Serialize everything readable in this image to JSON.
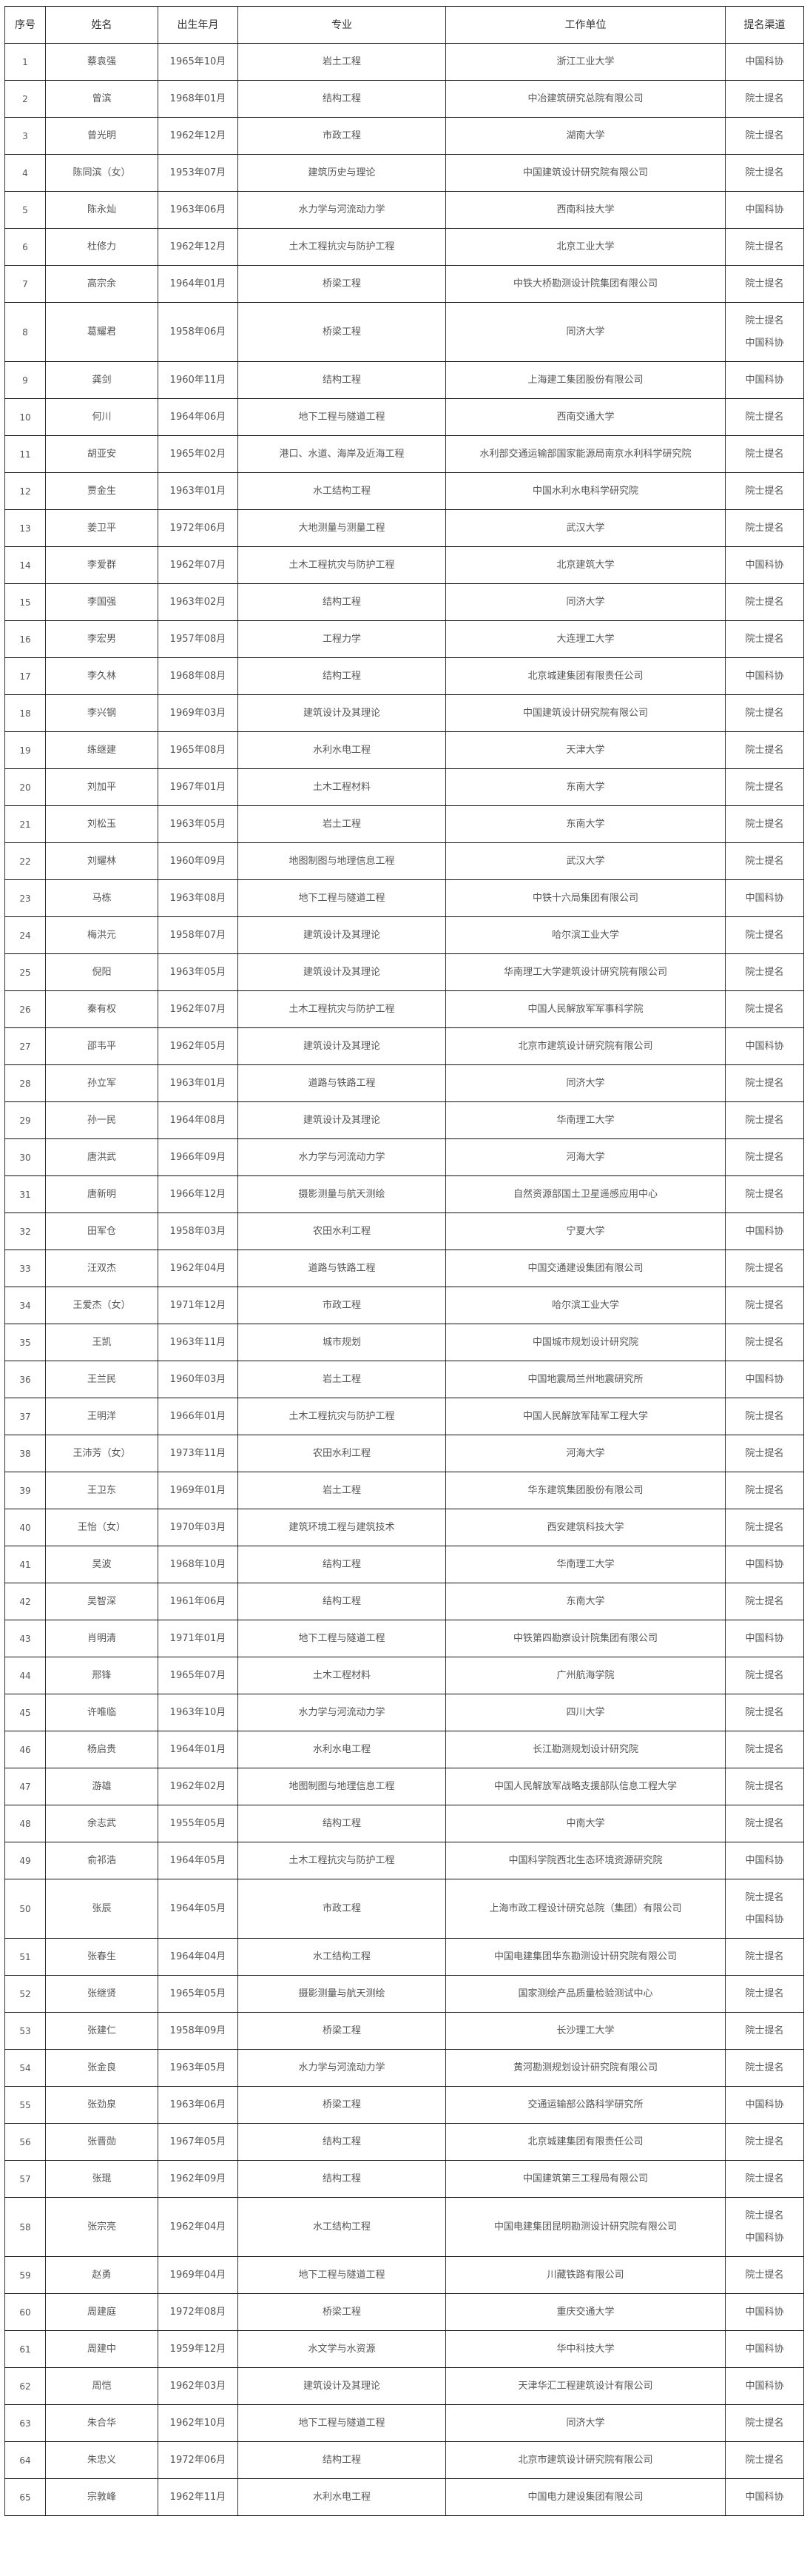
{
  "headers": [
    "序号",
    "姓名",
    "出生年月",
    "专业",
    "工作单位",
    "提名渠道"
  ],
  "rows": [
    [
      "1",
      "蔡袁强",
      "1965年10月",
      "岩土工程",
      "浙江工业大学",
      [
        "中国科协"
      ]
    ],
    [
      "2",
      "曾滨",
      "1968年01月",
      "结构工程",
      "中冶建筑研究总院有限公司",
      [
        "院士提名"
      ]
    ],
    [
      "3",
      "曾光明",
      "1962年12月",
      "市政工程",
      "湖南大学",
      [
        "院士提名"
      ]
    ],
    [
      "4",
      "陈同滨（女）",
      "1953年07月",
      "建筑历史与理论",
      "中国建筑设计研究院有限公司",
      [
        "院士提名"
      ]
    ],
    [
      "5",
      "陈永灿",
      "1963年06月",
      "水力学与河流动力学",
      "西南科技大学",
      [
        "中国科协"
      ]
    ],
    [
      "6",
      "杜修力",
      "1962年12月",
      "土木工程抗灾与防护工程",
      "北京工业大学",
      [
        "院士提名"
      ]
    ],
    [
      "7",
      "高宗余",
      "1964年01月",
      "桥梁工程",
      "中铁大桥勘测设计院集团有限公司",
      [
        "院士提名"
      ]
    ],
    [
      "8",
      "葛耀君",
      "1958年06月",
      "桥梁工程",
      "同济大学",
      [
        "院士提名",
        "中国科协"
      ]
    ],
    [
      "9",
      "龚剑",
      "1960年11月",
      "结构工程",
      "上海建工集团股份有限公司",
      [
        "中国科协"
      ]
    ],
    [
      "10",
      "何川",
      "1964年06月",
      "地下工程与隧道工程",
      "西南交通大学",
      [
        "院士提名"
      ]
    ],
    [
      "11",
      "胡亚安",
      "1965年02月",
      "港口、水道、海岸及近海工程",
      "水利部交通运输部国家能源局南京水利科学研究院",
      [
        "院士提名"
      ]
    ],
    [
      "12",
      "贾金生",
      "1963年01月",
      "水工结构工程",
      "中国水利水电科学研究院",
      [
        "院士提名"
      ]
    ],
    [
      "13",
      "姜卫平",
      "1972年06月",
      "大地测量与测量工程",
      "武汉大学",
      [
        "院士提名"
      ]
    ],
    [
      "14",
      "李爱群",
      "1962年07月",
      "土木工程抗灾与防护工程",
      "北京建筑大学",
      [
        "中国科协"
      ]
    ],
    [
      "15",
      "李国强",
      "1963年02月",
      "结构工程",
      "同济大学",
      [
        "院士提名"
      ]
    ],
    [
      "16",
      "李宏男",
      "1957年08月",
      "工程力学",
      "大连理工大学",
      [
        "院士提名"
      ]
    ],
    [
      "17",
      "李久林",
      "1968年08月",
      "结构工程",
      "北京城建集团有限责任公司",
      [
        "中国科协"
      ]
    ],
    [
      "18",
      "李兴钢",
      "1969年03月",
      "建筑设计及其理论",
      "中国建筑设计研究院有限公司",
      [
        "院士提名"
      ]
    ],
    [
      "19",
      "练继建",
      "1965年08月",
      "水利水电工程",
      "天津大学",
      [
        "院士提名"
      ]
    ],
    [
      "20",
      "刘加平",
      "1967年01月",
      "土木工程材料",
      "东南大学",
      [
        "院士提名"
      ]
    ],
    [
      "21",
      "刘松玉",
      "1963年05月",
      "岩土工程",
      "东南大学",
      [
        "院士提名"
      ]
    ],
    [
      "22",
      "刘耀林",
      "1960年09月",
      "地图制图与地理信息工程",
      "武汉大学",
      [
        "院士提名"
      ]
    ],
    [
      "23",
      "马栋",
      "1963年08月",
      "地下工程与隧道工程",
      "中铁十六局集团有限公司",
      [
        "中国科协"
      ]
    ],
    [
      "24",
      "梅洪元",
      "1958年07月",
      "建筑设计及其理论",
      "哈尔滨工业大学",
      [
        "院士提名"
      ]
    ],
    [
      "25",
      "倪阳",
      "1963年05月",
      "建筑设计及其理论",
      "华南理工大学建筑设计研究院有限公司",
      [
        "院士提名"
      ]
    ],
    [
      "26",
      "秦有权",
      "1962年07月",
      "土木工程抗灾与防护工程",
      "中国人民解放军军事科学院",
      [
        "院士提名"
      ]
    ],
    [
      "27",
      "邵韦平",
      "1962年05月",
      "建筑设计及其理论",
      "北京市建筑设计研究院有限公司",
      [
        "中国科协"
      ]
    ],
    [
      "28",
      "孙立军",
      "1963年01月",
      "道路与铁路工程",
      "同济大学",
      [
        "院士提名"
      ]
    ],
    [
      "29",
      "孙一民",
      "1964年08月",
      "建筑设计及其理论",
      "华南理工大学",
      [
        "院士提名"
      ]
    ],
    [
      "30",
      "唐洪武",
      "1966年09月",
      "水力学与河流动力学",
      "河海大学",
      [
        "院士提名"
      ]
    ],
    [
      "31",
      "唐新明",
      "1966年12月",
      "摄影测量与航天测绘",
      "自然资源部国土卫星遥感应用中心",
      [
        "院士提名"
      ]
    ],
    [
      "32",
      "田军仓",
      "1958年03月",
      "农田水利工程",
      "宁夏大学",
      [
        "中国科协"
      ]
    ],
    [
      "33",
      "汪双杰",
      "1962年04月",
      "道路与铁路工程",
      "中国交通建设集团有限公司",
      [
        "院士提名"
      ]
    ],
    [
      "34",
      "王爱杰（女）",
      "1971年12月",
      "市政工程",
      "哈尔滨工业大学",
      [
        "院士提名"
      ]
    ],
    [
      "35",
      "王凯",
      "1963年11月",
      "城市规划",
      "中国城市规划设计研究院",
      [
        "院士提名"
      ]
    ],
    [
      "36",
      "王兰民",
      "1960年03月",
      "岩土工程",
      "中国地震局兰州地震研究所",
      [
        "中国科协"
      ]
    ],
    [
      "37",
      "王明洋",
      "1966年01月",
      "土木工程抗灾与防护工程",
      "中国人民解放军陆军工程大学",
      [
        "院士提名"
      ]
    ],
    [
      "38",
      "王沛芳（女）",
      "1973年11月",
      "农田水利工程",
      "河海大学",
      [
        "院士提名"
      ]
    ],
    [
      "39",
      "王卫东",
      "1969年01月",
      "岩土工程",
      "华东建筑集团股份有限公司",
      [
        "院士提名"
      ]
    ],
    [
      "40",
      "王怡（女）",
      "1970年03月",
      "建筑环境工程与建筑技术",
      "西安建筑科技大学",
      [
        "院士提名"
      ]
    ],
    [
      "41",
      "吴波",
      "1968年10月",
      "结构工程",
      "华南理工大学",
      [
        "中国科协"
      ]
    ],
    [
      "42",
      "吴智深",
      "1961年06月",
      "结构工程",
      "东南大学",
      [
        "院士提名"
      ]
    ],
    [
      "43",
      "肖明清",
      "1971年01月",
      "地下工程与隧道工程",
      "中铁第四勘察设计院集团有限公司",
      [
        "中国科协"
      ]
    ],
    [
      "44",
      "邢锋",
      "1965年07月",
      "土木工程材料",
      "广州航海学院",
      [
        "院士提名"
      ]
    ],
    [
      "45",
      "许唯临",
      "1963年10月",
      "水力学与河流动力学",
      "四川大学",
      [
        "院士提名"
      ]
    ],
    [
      "46",
      "杨启贵",
      "1964年01月",
      "水利水电工程",
      "长江勘测规划设计研究院",
      [
        "院士提名"
      ]
    ],
    [
      "47",
      "游雄",
      "1962年02月",
      "地图制图与地理信息工程",
      "中国人民解放军战略支援部队信息工程大学",
      [
        "院士提名"
      ]
    ],
    [
      "48",
      "余志武",
      "1955年05月",
      "结构工程",
      "中南大学",
      [
        "院士提名"
      ]
    ],
    [
      "49",
      "俞祁浩",
      "1964年05月",
      "土木工程抗灾与防护工程",
      "中国科学院西北生态环境资源研究院",
      [
        "中国科协"
      ]
    ],
    [
      "50",
      "张辰",
      "1964年05月",
      "市政工程",
      "上海市政工程设计研究总院（集团）有限公司",
      [
        "院士提名",
        "中国科协"
      ]
    ],
    [
      "51",
      "张春生",
      "1964年04月",
      "水工结构工程",
      "中国电建集团华东勘测设计研究院有限公司",
      [
        "院士提名"
      ]
    ],
    [
      "52",
      "张继贤",
      "1965年05月",
      "摄影测量与航天测绘",
      "国家测绘产品质量检验测试中心",
      [
        "院士提名"
      ]
    ],
    [
      "53",
      "张建仁",
      "1958年09月",
      "桥梁工程",
      "长沙理工大学",
      [
        "院士提名"
      ]
    ],
    [
      "54",
      "张金良",
      "1963年05月",
      "水力学与河流动力学",
      "黄河勘测规划设计研究院有限公司",
      [
        "院士提名"
      ]
    ],
    [
      "55",
      "张劲泉",
      "1963年06月",
      "桥梁工程",
      "交通运输部公路科学研究所",
      [
        "中国科协"
      ]
    ],
    [
      "56",
      "张晋勋",
      "1967年05月",
      "结构工程",
      "北京城建集团有限责任公司",
      [
        "院士提名"
      ]
    ],
    [
      "57",
      "张琨",
      "1962年09月",
      "结构工程",
      "中国建筑第三工程局有限公司",
      [
        "院士提名"
      ]
    ],
    [
      "58",
      "张宗亮",
      "1962年04月",
      "水工结构工程",
      "中国电建集团昆明勘测设计研究院有限公司",
      [
        "院士提名",
        "中国科协"
      ]
    ],
    [
      "59",
      "赵勇",
      "1969年04月",
      "地下工程与隧道工程",
      "川藏铁路有限公司",
      [
        "院士提名"
      ]
    ],
    [
      "60",
      "周建庭",
      "1972年08月",
      "桥梁工程",
      "重庆交通大学",
      [
        "中国科协"
      ]
    ],
    [
      "61",
      "周建中",
      "1959年12月",
      "水文学与水资源",
      "华中科技大学",
      [
        "中国科协"
      ]
    ],
    [
      "62",
      "周恺",
      "1962年03月",
      "建筑设计及其理论",
      "天津华汇工程建筑设计有限公司",
      [
        "中国科协"
      ]
    ],
    [
      "63",
      "朱合华",
      "1962年10月",
      "地下工程与隧道工程",
      "同济大学",
      [
        "院士提名"
      ]
    ],
    [
      "64",
      "朱忠义",
      "1972年06月",
      "结构工程",
      "北京市建筑设计研究院有限公司",
      [
        "院士提名"
      ]
    ],
    [
      "65",
      "宗敦峰",
      "1962年11月",
      "水利水电工程",
      "中国电力建设集团有限公司",
      [
        "中国科协"
      ]
    ]
  ]
}
